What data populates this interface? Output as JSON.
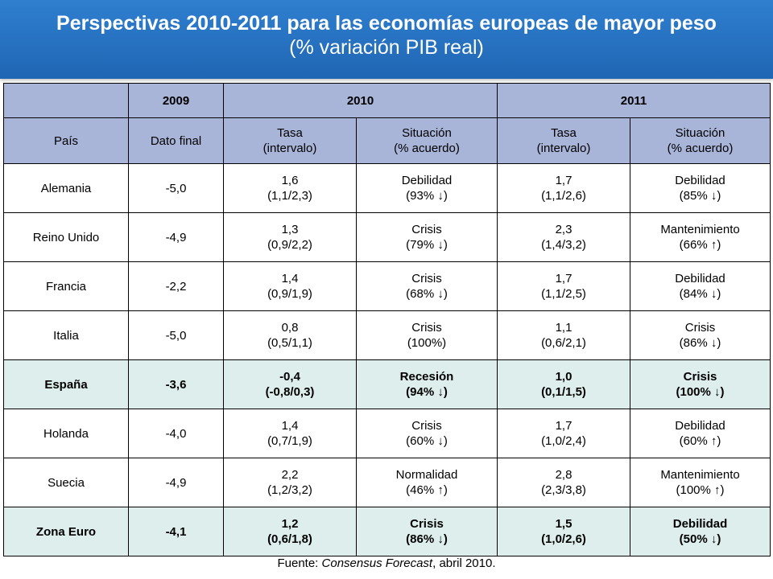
{
  "title": {
    "line1": "Perspectivas 2010-2011 para las economías europeas de mayor peso",
    "line2": "(% variación PIB real)"
  },
  "table": {
    "years": {
      "y2009": "2009",
      "y2010": "2010",
      "y2011": "2011"
    },
    "subheaders": {
      "pais": "País",
      "dato_final": "Dato final",
      "tasa_2010_l1": "Tasa",
      "tasa_2010_l2": "(intervalo)",
      "sit_2010_l1": "Situación",
      "sit_2010_l2": "(% acuerdo)",
      "tasa_2011_l1": "Tasa",
      "tasa_2011_l2": "(intervalo)",
      "sit_2011_l1": "Situación",
      "sit_2011_l2": "(% acuerdo)"
    },
    "rows": [
      {
        "pais": "Alemania",
        "dato": "-5,0",
        "t10": "1,6",
        "i10": "(1,1/2,3)",
        "s10": "Debilidad",
        "p10": "(93% ",
        "a10": "↓",
        "t11": "1,7",
        "i11": "(1,1/2,6)",
        "s11": "Debilidad",
        "p11": "(85% ",
        "a11": "↓",
        "highlight": false
      },
      {
        "pais": "Reino Unido",
        "dato": "-4,9",
        "t10": "1,3",
        "i10": "(0,9/2,2)",
        "s10": "Crisis",
        "p10": "(79% ",
        "a10": "↓",
        "t11": "2,3",
        "i11": "(1,4/3,2)",
        "s11": "Mantenimiento",
        "p11": "(66% ",
        "a11": "↑",
        "highlight": false
      },
      {
        "pais": "Francia",
        "dato": "-2,2",
        "t10": "1,4",
        "i10": "(0,9/1,9)",
        "s10": "Crisis",
        "p10": "(68% ",
        "a10": "↓",
        "t11": "1,7",
        "i11": "(1,1/2,5)",
        "s11": "Debilidad",
        "p11": "(84% ",
        "a11": "↓",
        "highlight": false
      },
      {
        "pais": "Italia",
        "dato": "-5,0",
        "t10": "0,8",
        "i10": "(0,5/1,1)",
        "s10": "Crisis",
        "p10": "(100%",
        "a10": "",
        "t11": "1,1",
        "i11": "(0,6/2,1)",
        "s11": "Crisis",
        "p11": "(86% ",
        "a11": "↓",
        "highlight": false
      },
      {
        "pais": "España",
        "dato": "-3,6",
        "t10": "-0,4",
        "i10": "(-0,8/0,3)",
        "s10": "Recesión",
        "p10": "(94% ",
        "a10": "↓",
        "t11": "1,0",
        "i11": "(0,1/1,5)",
        "s11": "Crisis",
        "p11": "(100% ",
        "a11": "↓",
        "highlight": true
      },
      {
        "pais": "Holanda",
        "dato": "-4,0",
        "t10": "1,4",
        "i10": "(0,7/1,9)",
        "s10": "Crisis",
        "p10": "(60% ",
        "a10": "↓",
        "t11": "1,7",
        "i11": "(1,0/2,4)",
        "s11": "Debilidad",
        "p11": "(60% ",
        "a11": "↑",
        "highlight": false
      },
      {
        "pais": "Suecia",
        "dato": "-4,9",
        "t10": "2,2",
        "i10": "(1,2/3,2)",
        "s10": "Normalidad",
        "p10": "(46% ",
        "a10": "↑",
        "t11": "2,8",
        "i11": "(2,3/3,8)",
        "s11": "Mantenimiento",
        "p11": "(100% ",
        "a11": "↑",
        "highlight": false
      },
      {
        "pais": "Zona Euro",
        "dato": "-4,1",
        "t10": "1,2",
        "i10": "(0,6/1,8)",
        "s10": "Crisis",
        "p10": "(86% ",
        "a10": "↓",
        "t11": "1,5",
        "i11": "(1,0/2,6)",
        "s11": "Debilidad",
        "p11": "(50% ",
        "a11": "↓",
        "highlight": true
      }
    ]
  },
  "source": {
    "prefix": "Fuente: ",
    "italic": "Consensus Forecast",
    "suffix": ", abril 2010."
  }
}
